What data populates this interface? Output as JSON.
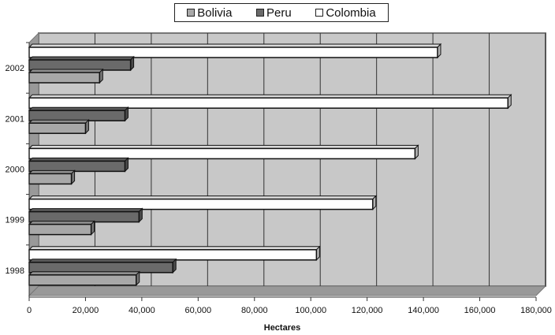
{
  "chart_data": {
    "type": "bar",
    "orientation": "horizontal",
    "style": "3d",
    "categories": [
      "1998",
      "1999",
      "2000",
      "2001",
      "2002"
    ],
    "series": [
      {
        "name": "Bolivia",
        "color": "#a8a8a8",
        "values": [
          38000,
          22000,
          15000,
          20000,
          25000
        ]
      },
      {
        "name": "Peru",
        "color": "#6a6a6a",
        "values": [
          51000,
          39000,
          34000,
          34000,
          36000
        ]
      },
      {
        "name": "Colombia",
        "color": "#ffffff",
        "values": [
          102000,
          122000,
          137000,
          170000,
          145000
        ]
      }
    ],
    "x_ticks": [
      "0",
      "20,000",
      "40,000",
      "60,000",
      "80,000",
      "100,000",
      "120,000",
      "140,000",
      "160,000",
      "180,000"
    ],
    "xlim": [
      0,
      180000
    ],
    "xlabel": "Hectares",
    "ylabel": "",
    "grid": true,
    "legend_position": "top-center",
    "plot_background": "#c8c8c8"
  }
}
